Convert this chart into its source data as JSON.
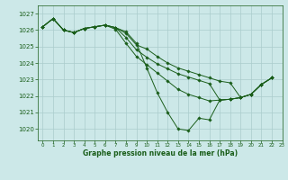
{
  "title": "Graphe pression niveau de la mer (hPa)",
  "background_color": "#cce8e8",
  "grid_color": "#aacccc",
  "line_color": "#1a5e1a",
  "xlim": [
    -0.5,
    23
  ],
  "ylim": [
    1019.3,
    1027.5
  ],
  "yticks": [
    1020,
    1021,
    1022,
    1023,
    1024,
    1025,
    1026,
    1027
  ],
  "xticks": [
    0,
    1,
    2,
    3,
    4,
    5,
    6,
    7,
    8,
    9,
    10,
    11,
    12,
    13,
    14,
    15,
    16,
    17,
    18,
    19,
    20,
    21,
    22,
    23
  ],
  "series": [
    [
      1026.2,
      1026.7,
      1026.0,
      1025.85,
      1026.1,
      1026.2,
      1026.3,
      1026.15,
      1025.9,
      1025.2,
      1023.7,
      1022.2,
      1021.0,
      1020.0,
      1019.9,
      1020.65,
      1020.55,
      1021.75,
      1021.8,
      1021.9,
      1022.1,
      1022.7,
      1023.1
    ],
    [
      1026.2,
      1026.7,
      1026.0,
      1025.85,
      1026.1,
      1026.2,
      1026.3,
      1026.15,
      1025.8,
      1025.1,
      1024.85,
      1024.4,
      1024.0,
      1023.7,
      1023.5,
      1023.3,
      1023.1,
      1022.9,
      1022.8,
      1021.9,
      1022.1,
      1022.7,
      1023.1
    ],
    [
      1026.2,
      1026.7,
      1026.0,
      1025.85,
      1026.1,
      1026.2,
      1026.3,
      1026.15,
      1025.55,
      1024.8,
      1024.35,
      1023.95,
      1023.65,
      1023.35,
      1023.15,
      1022.95,
      1022.75,
      1021.75,
      1021.8,
      1021.9,
      1022.1,
      1022.7,
      1023.1
    ],
    [
      1026.2,
      1026.7,
      1026.0,
      1025.85,
      1026.1,
      1026.2,
      1026.3,
      1026.05,
      1025.2,
      1024.4,
      1023.9,
      1023.4,
      1022.9,
      1022.4,
      1022.1,
      1021.9,
      1021.7,
      1021.75,
      1021.8,
      1021.9,
      1022.1,
      1022.7,
      1023.1
    ]
  ]
}
